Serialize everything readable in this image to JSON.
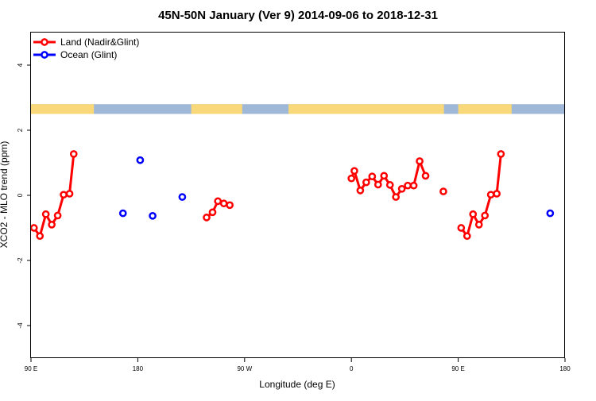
{
  "chart_data": {
    "type": "line",
    "title": "45N-50N January (Ver 9)   2014-09-06 to 2018-12-31",
    "xlabel": "Longitude (deg E)",
    "ylabel": "XCO2 - MLO trend (ppm)",
    "xlim": [
      90,
      540
    ],
    "ylim": [
      -5,
      5
    ],
    "x_ticks": [
      {
        "value": 90,
        "label": "90 E"
      },
      {
        "value": 180,
        "label": "180"
      },
      {
        "value": 270,
        "label": "90 W"
      },
      {
        "value": 360,
        "label": "0"
      },
      {
        "value": 450,
        "label": "90 E"
      },
      {
        "value": 540,
        "label": "180"
      }
    ],
    "y_ticks": [
      {
        "value": -4,
        "label": "-4"
      },
      {
        "value": -2,
        "label": "-2"
      },
      {
        "value": 0,
        "label": "0"
      },
      {
        "value": 2,
        "label": "2"
      },
      {
        "value": 4,
        "label": "4"
      }
    ],
    "legend": {
      "position": "top-left"
    },
    "colors": {
      "land": "#ff0000",
      "ocean": "#0000ff",
      "map_land": "#f8d878",
      "map_ocean": "#a0b8d8"
    },
    "map_strip": {
      "y_range": [
        2.5,
        2.8
      ],
      "land_lon_ranges": [
        [
          90,
          143
        ],
        [
          225,
          268
        ],
        [
          307,
          438
        ],
        [
          450,
          495
        ]
      ]
    },
    "series": [
      {
        "name": "Land (Nadir&Glint)",
        "color": "#ff0000",
        "connected": true,
        "segments": [
          [
            [
              92.5,
              -1.0
            ],
            [
              97.5,
              -1.25
            ],
            [
              102.5,
              -0.58
            ],
            [
              107.5,
              -0.9
            ],
            [
              112.5,
              -0.62
            ],
            [
              117.5,
              0.02
            ],
            [
              122.5,
              0.05
            ],
            [
              126,
              1.27
            ]
          ],
          [
            [
              238,
              -0.68
            ],
            [
              243,
              -0.52
            ],
            [
              247.5,
              -0.18
            ],
            [
              252.5,
              -0.25
            ],
            [
              257.5,
              -0.3
            ]
          ],
          [
            [
              360,
              0.52
            ],
            [
              362.5,
              0.75
            ],
            [
              367.5,
              0.15
            ],
            [
              372.5,
              0.4
            ],
            [
              377.5,
              0.58
            ],
            [
              382.5,
              0.33
            ],
            [
              387.5,
              0.6
            ],
            [
              392.5,
              0.32
            ],
            [
              397.5,
              -0.05
            ],
            [
              402.5,
              0.2
            ],
            [
              407.5,
              0.3
            ],
            [
              412.5,
              0.3
            ],
            [
              417.5,
              1.05
            ],
            [
              422.5,
              0.6
            ]
          ],
          [
            [
              437.5,
              0.12
            ]
          ],
          [
            [
              452.5,
              -1.0
            ],
            [
              457.5,
              -1.25
            ],
            [
              462.5,
              -0.58
            ],
            [
              467.5,
              -0.9
            ],
            [
              472.5,
              -0.62
            ],
            [
              477.5,
              0.02
            ],
            [
              482.5,
              0.05
            ],
            [
              486,
              1.27
            ]
          ]
        ]
      },
      {
        "name": "Ocean (Glint)",
        "color": "#0000ff",
        "connected": false,
        "segments": [
          [
            [
              167.5,
              -0.55
            ],
            [
              182,
              1.08
            ],
            [
              192.5,
              -0.63
            ],
            [
              217.5,
              -0.05
            ],
            [
              527.5,
              -0.55
            ]
          ]
        ]
      }
    ]
  }
}
